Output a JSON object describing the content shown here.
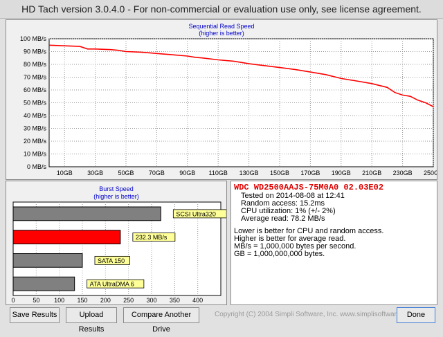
{
  "window": {
    "title": "HD Tach version 3.0.4.0  - For non-commercial or evaluation use only, see license agreement."
  },
  "sequential": {
    "title": "Sequential Read Speed",
    "subtitle": "(higher is better)",
    "color": "#ff0000"
  },
  "burst": {
    "title": "Burst Speed",
    "subtitle": "(higher is better)"
  },
  "info": {
    "drive": "WDC WD2500AAJS-75M0A0 02.03E02",
    "tested_on": "Tested on 2014-08-08 at 12:41",
    "random_access": "Random access: 15.2ms",
    "cpu": "CPU utilization: 1% (+/- 2%)",
    "avg_read": "Average read: 78.2 MB/s",
    "note1": "Lower is better for CPU and random access.",
    "note2": "Higher is better for average read.",
    "note3": "MB/s = 1,000,000 bytes per second.",
    "note4": "GB = 1,000,000,000 bytes."
  },
  "buttons": {
    "save": "Save Results",
    "upload": "Upload Results",
    "compare": "Compare Another Drive",
    "done": "Done"
  },
  "copyright": "Copyright (C) 2004 Simpli Software, Inc. www.simplisoftware.com",
  "chart_data": [
    {
      "type": "line",
      "title": "Sequential Read Speed",
      "subtitle": "(higher is better)",
      "y_ticks": [
        "0 MB/s",
        "10 MB/s",
        "20 MB/s",
        "30 MB/s",
        "40 MB/s",
        "50 MB/s",
        "60 MB/s",
        "70 MB/s",
        "80 MB/s",
        "90 MB/s",
        "100 MB/s"
      ],
      "x_ticks": [
        "10GB",
        "30GB",
        "50GB",
        "70GB",
        "90GB",
        "110GB",
        "130GB",
        "150GB",
        "170GB",
        "190GB",
        "210GB",
        "230GB",
        "250GB"
      ],
      "ylim": [
        0,
        100
      ],
      "xlim": [
        0,
        250
      ],
      "grid": true,
      "series": [
        {
          "color": "#ff0000",
          "x": [
            0,
            10,
            20,
            25,
            30,
            40,
            45,
            50,
            60,
            65,
            70,
            80,
            90,
            95,
            100,
            110,
            120,
            125,
            130,
            140,
            150,
            160,
            170,
            180,
            190,
            200,
            210,
            220,
            225,
            230,
            235,
            240,
            245,
            250
          ],
          "y": [
            95,
            94.5,
            94,
            92,
            92,
            91.5,
            91,
            90,
            89.5,
            89,
            88.5,
            87.5,
            86.5,
            85.5,
            85,
            83.5,
            82.5,
            81.5,
            80.5,
            79,
            77.5,
            76,
            74,
            72,
            69,
            67,
            65,
            62,
            58,
            56,
            55,
            52,
            50,
            47
          ]
        }
      ]
    },
    {
      "type": "bar",
      "title": "Burst Speed",
      "subtitle": "(higher is better)",
      "orientation": "horizontal",
      "categories": [
        "SCSI Ultra320",
        "232.3 MB/s",
        "SATA 150",
        "ATA UltraDMA 6"
      ],
      "values": [
        320,
        232.3,
        150,
        133
      ],
      "colors": [
        "#808080",
        "#ff0000",
        "#808080",
        "#808080"
      ],
      "x_ticks": [
        "0",
        "50",
        "100",
        "150",
        "200",
        "250",
        "300",
        "350",
        "400"
      ],
      "xlim": [
        0,
        450
      ]
    }
  ]
}
